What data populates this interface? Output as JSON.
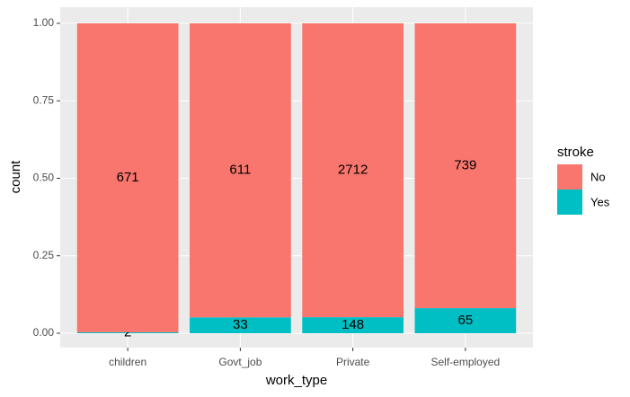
{
  "chart_data": {
    "type": "bar",
    "position": "fill",
    "y_label": "count",
    "x_label": "work_type",
    "categories": [
      "children",
      "Govt_job",
      "Private",
      "Self-employed"
    ],
    "series": [
      {
        "name": "No",
        "color": "#F8766D",
        "values": [
          671,
          611,
          2712,
          739
        ]
      },
      {
        "name": "Yes",
        "color": "#00BFC4",
        "values": [
          2,
          33,
          148,
          65
        ]
      }
    ],
    "ylim": [
      0,
      1
    ],
    "yticks": [
      {
        "value": 0,
        "label": "0.00"
      },
      {
        "value": 0.25,
        "label": "0.25"
      },
      {
        "value": 0.5,
        "label": "0.50"
      },
      {
        "value": 0.75,
        "label": "0.75"
      },
      {
        "value": 1,
        "label": "1.00"
      }
    ],
    "grid": true,
    "legend_title": "stroke",
    "legend_position": "right"
  }
}
